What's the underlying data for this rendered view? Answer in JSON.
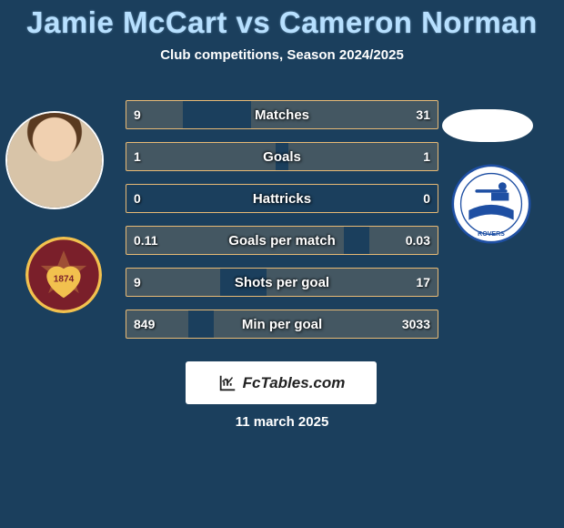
{
  "title": "Jamie McCart vs Cameron Norman",
  "title_color": "#b7e0ff",
  "subtitle": "Club competitions, Season 2024/2025",
  "background_color": "#1b3f5d",
  "bar_border_color": "rgba(255,200,120,0.9)",
  "bar_fill_color": "rgba(255,200,120,0.18)",
  "text_color": "#ffffff",
  "rows": [
    {
      "label": "Matches",
      "left": "9",
      "right": "31",
      "lpct": 18,
      "rpct": 60
    },
    {
      "label": "Goals",
      "left": "1",
      "right": "1",
      "lpct": 48,
      "rpct": 48
    },
    {
      "label": "Hattricks",
      "left": "0",
      "right": "0",
      "lpct": 0,
      "rpct": 0
    },
    {
      "label": "Goals per match",
      "left": "0.11",
      "right": "0.03",
      "lpct": 70,
      "rpct": 22
    },
    {
      "label": "Shots per goal",
      "left": "9",
      "right": "17",
      "lpct": 30,
      "rpct": 55
    },
    {
      "label": "Min per goal",
      "left": "849",
      "right": "3033",
      "lpct": 20,
      "rpct": 72
    }
  ],
  "player1": {
    "name": "Jamie McCart",
    "crest_name": "Hearts"
  },
  "player2": {
    "name": "Cameron Norman",
    "crest_name": "Tranmere Rovers"
  },
  "footer": {
    "site": "FcTables.com"
  },
  "date": "11 march 2025",
  "crest1_colors": {
    "bg": "#7a1f2a",
    "accent": "#f2c14e"
  },
  "crest2_colors": {
    "bg": "#ffffff",
    "accent": "#1e4fa3"
  }
}
